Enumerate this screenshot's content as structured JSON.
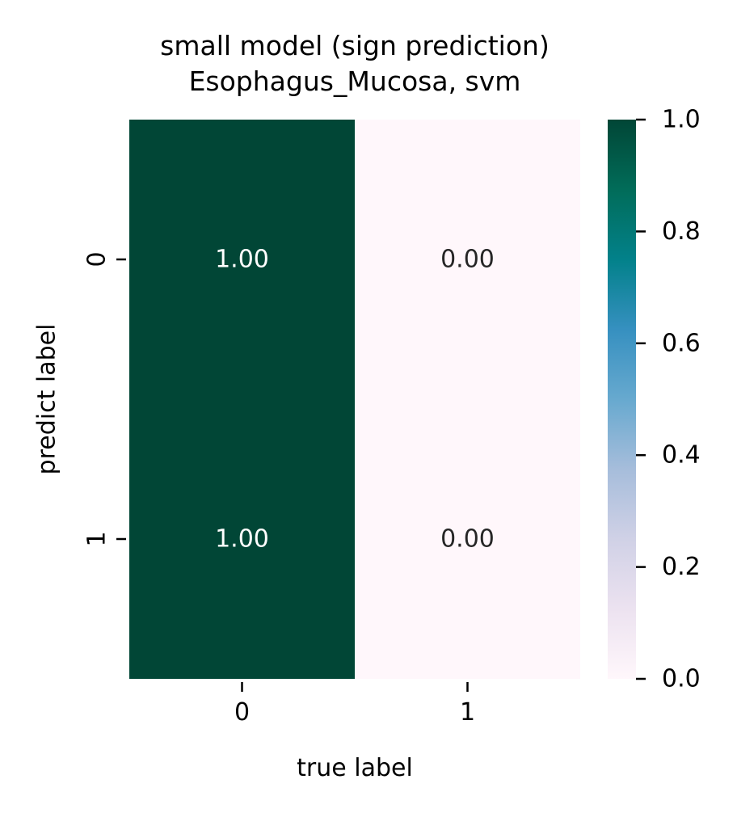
{
  "chart_data": {
    "type": "heatmap",
    "title": "small model (sign prediction)\nEsophagus_Mucosa, svm",
    "title_lines": [
      "small model (sign prediction)",
      "Esophagus_Mucosa, svm"
    ],
    "xlabel": "true label",
    "ylabel": "predict label",
    "x_categories": [
      "0",
      "1"
    ],
    "y_categories": [
      "0",
      "1"
    ],
    "values": [
      [
        1.0,
        0.0
      ],
      [
        1.0,
        0.0
      ]
    ],
    "cell_labels": [
      [
        "1.00",
        "0.00"
      ],
      [
        "1.00",
        "0.00"
      ]
    ],
    "colorbar": {
      "range": [
        0.0,
        1.0
      ],
      "ticks": [
        0.0,
        0.2,
        0.4,
        0.6,
        0.8,
        1.0
      ],
      "tick_labels": [
        "0.0",
        "0.2",
        "0.4",
        "0.6",
        "0.8",
        "1.0"
      ]
    },
    "colormap": "PuBuGn",
    "colormap_stops": [
      {
        "v": 0.0,
        "color": "#fff7fb"
      },
      {
        "v": 0.125,
        "color": "#ece2f0"
      },
      {
        "v": 0.25,
        "color": "#d0d1e6"
      },
      {
        "v": 0.375,
        "color": "#a6bddb"
      },
      {
        "v": 0.5,
        "color": "#67a9cf"
      },
      {
        "v": 0.625,
        "color": "#3690c0"
      },
      {
        "v": 0.75,
        "color": "#02818a"
      },
      {
        "v": 0.875,
        "color": "#016c59"
      },
      {
        "v": 1.0,
        "color": "#014636"
      }
    ],
    "annotation_colors": {
      "dark_cell": "#ffffff",
      "light_cell": "#262626"
    },
    "grid": false,
    "legend": "colorbar-right"
  }
}
